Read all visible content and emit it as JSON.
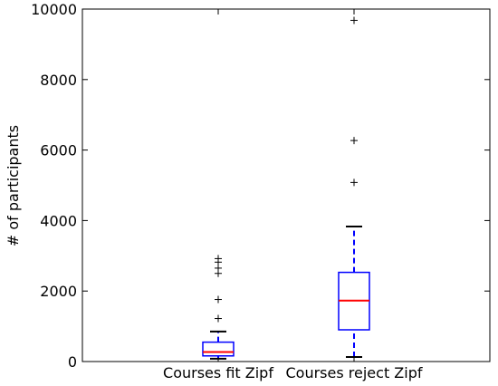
{
  "chart_data": {
    "type": "boxplot",
    "title": "",
    "xlabel": "",
    "ylabel": "# of participants",
    "ylim": [
      0,
      10000
    ],
    "yticks": [
      0,
      2000,
      4000,
      6000,
      8000,
      10000
    ],
    "grid": false,
    "categories": [
      "Courses fit Zipf",
      "Courses reject Zipf"
    ],
    "boxes": [
      {
        "category": "Courses fit Zipf",
        "whisker_low": 80,
        "q1": 160,
        "median": 270,
        "q3": 550,
        "whisker_high": 850,
        "outliers": [
          1220,
          1760,
          2500,
          2650,
          2820,
          2920
        ]
      },
      {
        "category": "Courses reject Zipf",
        "whisker_low": 130,
        "q1": 900,
        "median": 1730,
        "q3": 2530,
        "whisker_high": 3830,
        "outliers": [
          5080,
          6270,
          9680
        ]
      }
    ],
    "colors": {
      "box": "#0000ff",
      "median": "#ff0000",
      "whisker": "#0000ff",
      "caps": "#000000",
      "outlier": "#000000"
    }
  }
}
